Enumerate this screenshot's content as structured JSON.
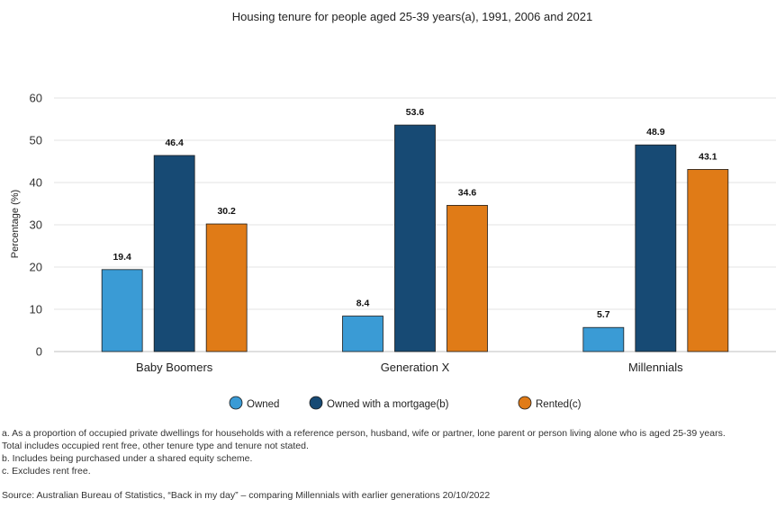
{
  "chart_data": {
    "type": "bar",
    "title": "Housing tenure for people aged 25-39 years(a), 1991, 2006 and 2021",
    "xlabel": "",
    "ylabel": "Percentage (%)",
    "ylim": [
      0,
      60
    ],
    "yticks": [
      0,
      10,
      20,
      30,
      40,
      50,
      60
    ],
    "grid": true,
    "legend_position": "bottom",
    "categories": [
      "Baby Boomers",
      "Generation X",
      "Millennials"
    ],
    "series": [
      {
        "name": "Owned",
        "color": "#3a9bd5",
        "values": [
          19.4,
          8.4,
          5.7
        ]
      },
      {
        "name": "Owned with a mortgage(b)",
        "color": "#174a74",
        "values": [
          46.4,
          53.6,
          48.9
        ]
      },
      {
        "name": "Rented(c)",
        "color": "#e07b17",
        "values": [
          30.2,
          34.6,
          43.1
        ]
      }
    ]
  },
  "footnotes": [
    "a. As a proportion of occupied private dwellings for households with a reference person, husband, wife or partner, lone parent or person living alone who is aged 25-39 years.",
    "Total includes occupied rent free, other tenure type and tenure not stated.",
    "b. Includes being purchased under a shared equity scheme.",
    "c. Excludes rent free."
  ],
  "source": "Source: Australian Bureau of Statistics, “Back in my day” – comparing Millennials with earlier generations 20/10/2022"
}
